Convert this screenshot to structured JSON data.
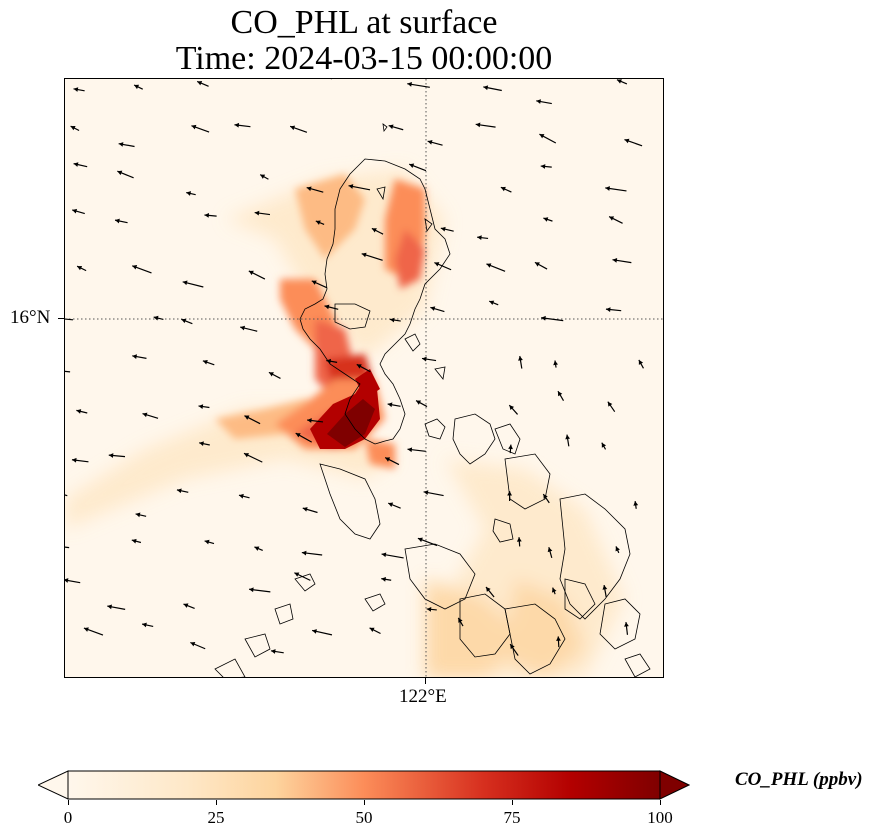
{
  "title": {
    "line1": "CO_PHL at surface",
    "line2": "Time: 2024-03-15 00:00:00"
  },
  "map": {
    "variable": "CO_PHL",
    "units": "ppbv",
    "colormap": "OrRd",
    "gridlines": "dotted",
    "lat_tick": "16°N",
    "lon_tick": "122°E",
    "features": [
      "coastlines",
      "wind vectors",
      "concentration field"
    ]
  },
  "colorbar": {
    "label": "CO_PHL (ppbv)",
    "ticks": [
      "0",
      "25",
      "50",
      "75",
      "100"
    ],
    "min": 0,
    "max": 100,
    "extend": "both",
    "colors": [
      "#fff7ec",
      "#fdd49e",
      "#fc8d59",
      "#d7301f",
      "#7f0000"
    ]
  }
}
